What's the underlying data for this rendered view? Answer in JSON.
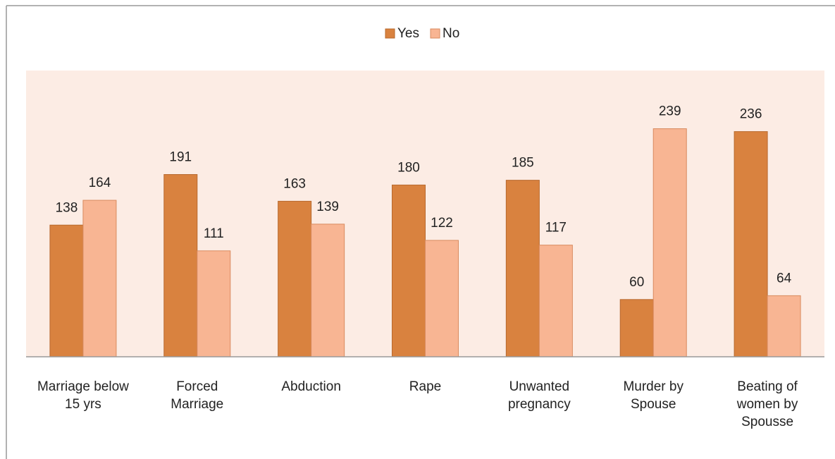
{
  "chart_data": {
    "type": "bar",
    "categories": [
      "Marriage below 15 yrs",
      "Forced Marriage",
      "Abduction",
      "Rape",
      "Unwanted pregnancy",
      "Murder by Spouse",
      "Beating of women by Spousse"
    ],
    "series": [
      {
        "name": "Yes",
        "color": "#d9823f",
        "values": [
          138,
          191,
          163,
          180,
          185,
          60,
          236
        ]
      },
      {
        "name": "No",
        "color": "#f8b593",
        "values": [
          164,
          111,
          139,
          122,
          117,
          239,
          64
        ]
      }
    ],
    "ylim": [
      0,
      300
    ],
    "legend": "top"
  }
}
